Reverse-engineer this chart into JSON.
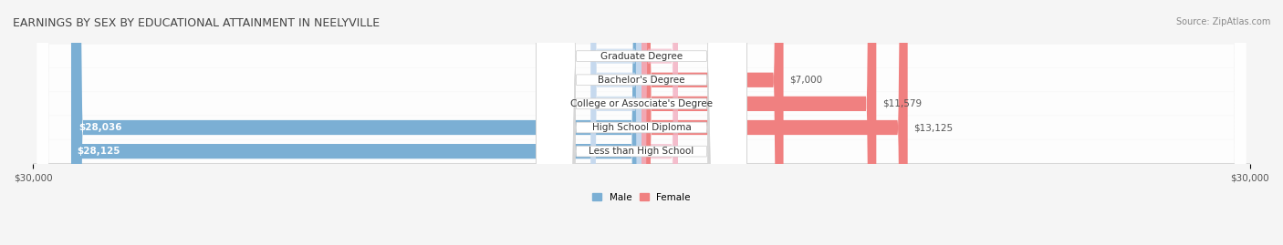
{
  "title": "EARNINGS BY SEX BY EDUCATIONAL ATTAINMENT IN NEELYVILLE",
  "source": "Source: ZipAtlas.com",
  "categories": [
    "Less than High School",
    "High School Diploma",
    "College or Associate's Degree",
    "Bachelor's Degree",
    "Graduate Degree"
  ],
  "male_values": [
    28125,
    28036,
    0,
    0,
    0
  ],
  "female_values": [
    0,
    13125,
    11579,
    7000,
    0
  ],
  "male_color": "#7BAFD4",
  "female_color": "#F08080",
  "male_color_light": "#A8C8E8",
  "female_color_light": "#F4A0B0",
  "male_label": "Male",
  "female_label": "Female",
  "x_max": 30000,
  "x_min": -30000,
  "x_ticks": [
    -30000,
    30000
  ],
  "x_tick_labels": [
    "$30,000",
    "$30,000"
  ],
  "background_color": "#f0f0f0",
  "bar_bg_color": "#e8e8e8",
  "title_fontsize": 9,
  "source_fontsize": 7,
  "label_fontsize": 7.5,
  "tick_fontsize": 7.5
}
